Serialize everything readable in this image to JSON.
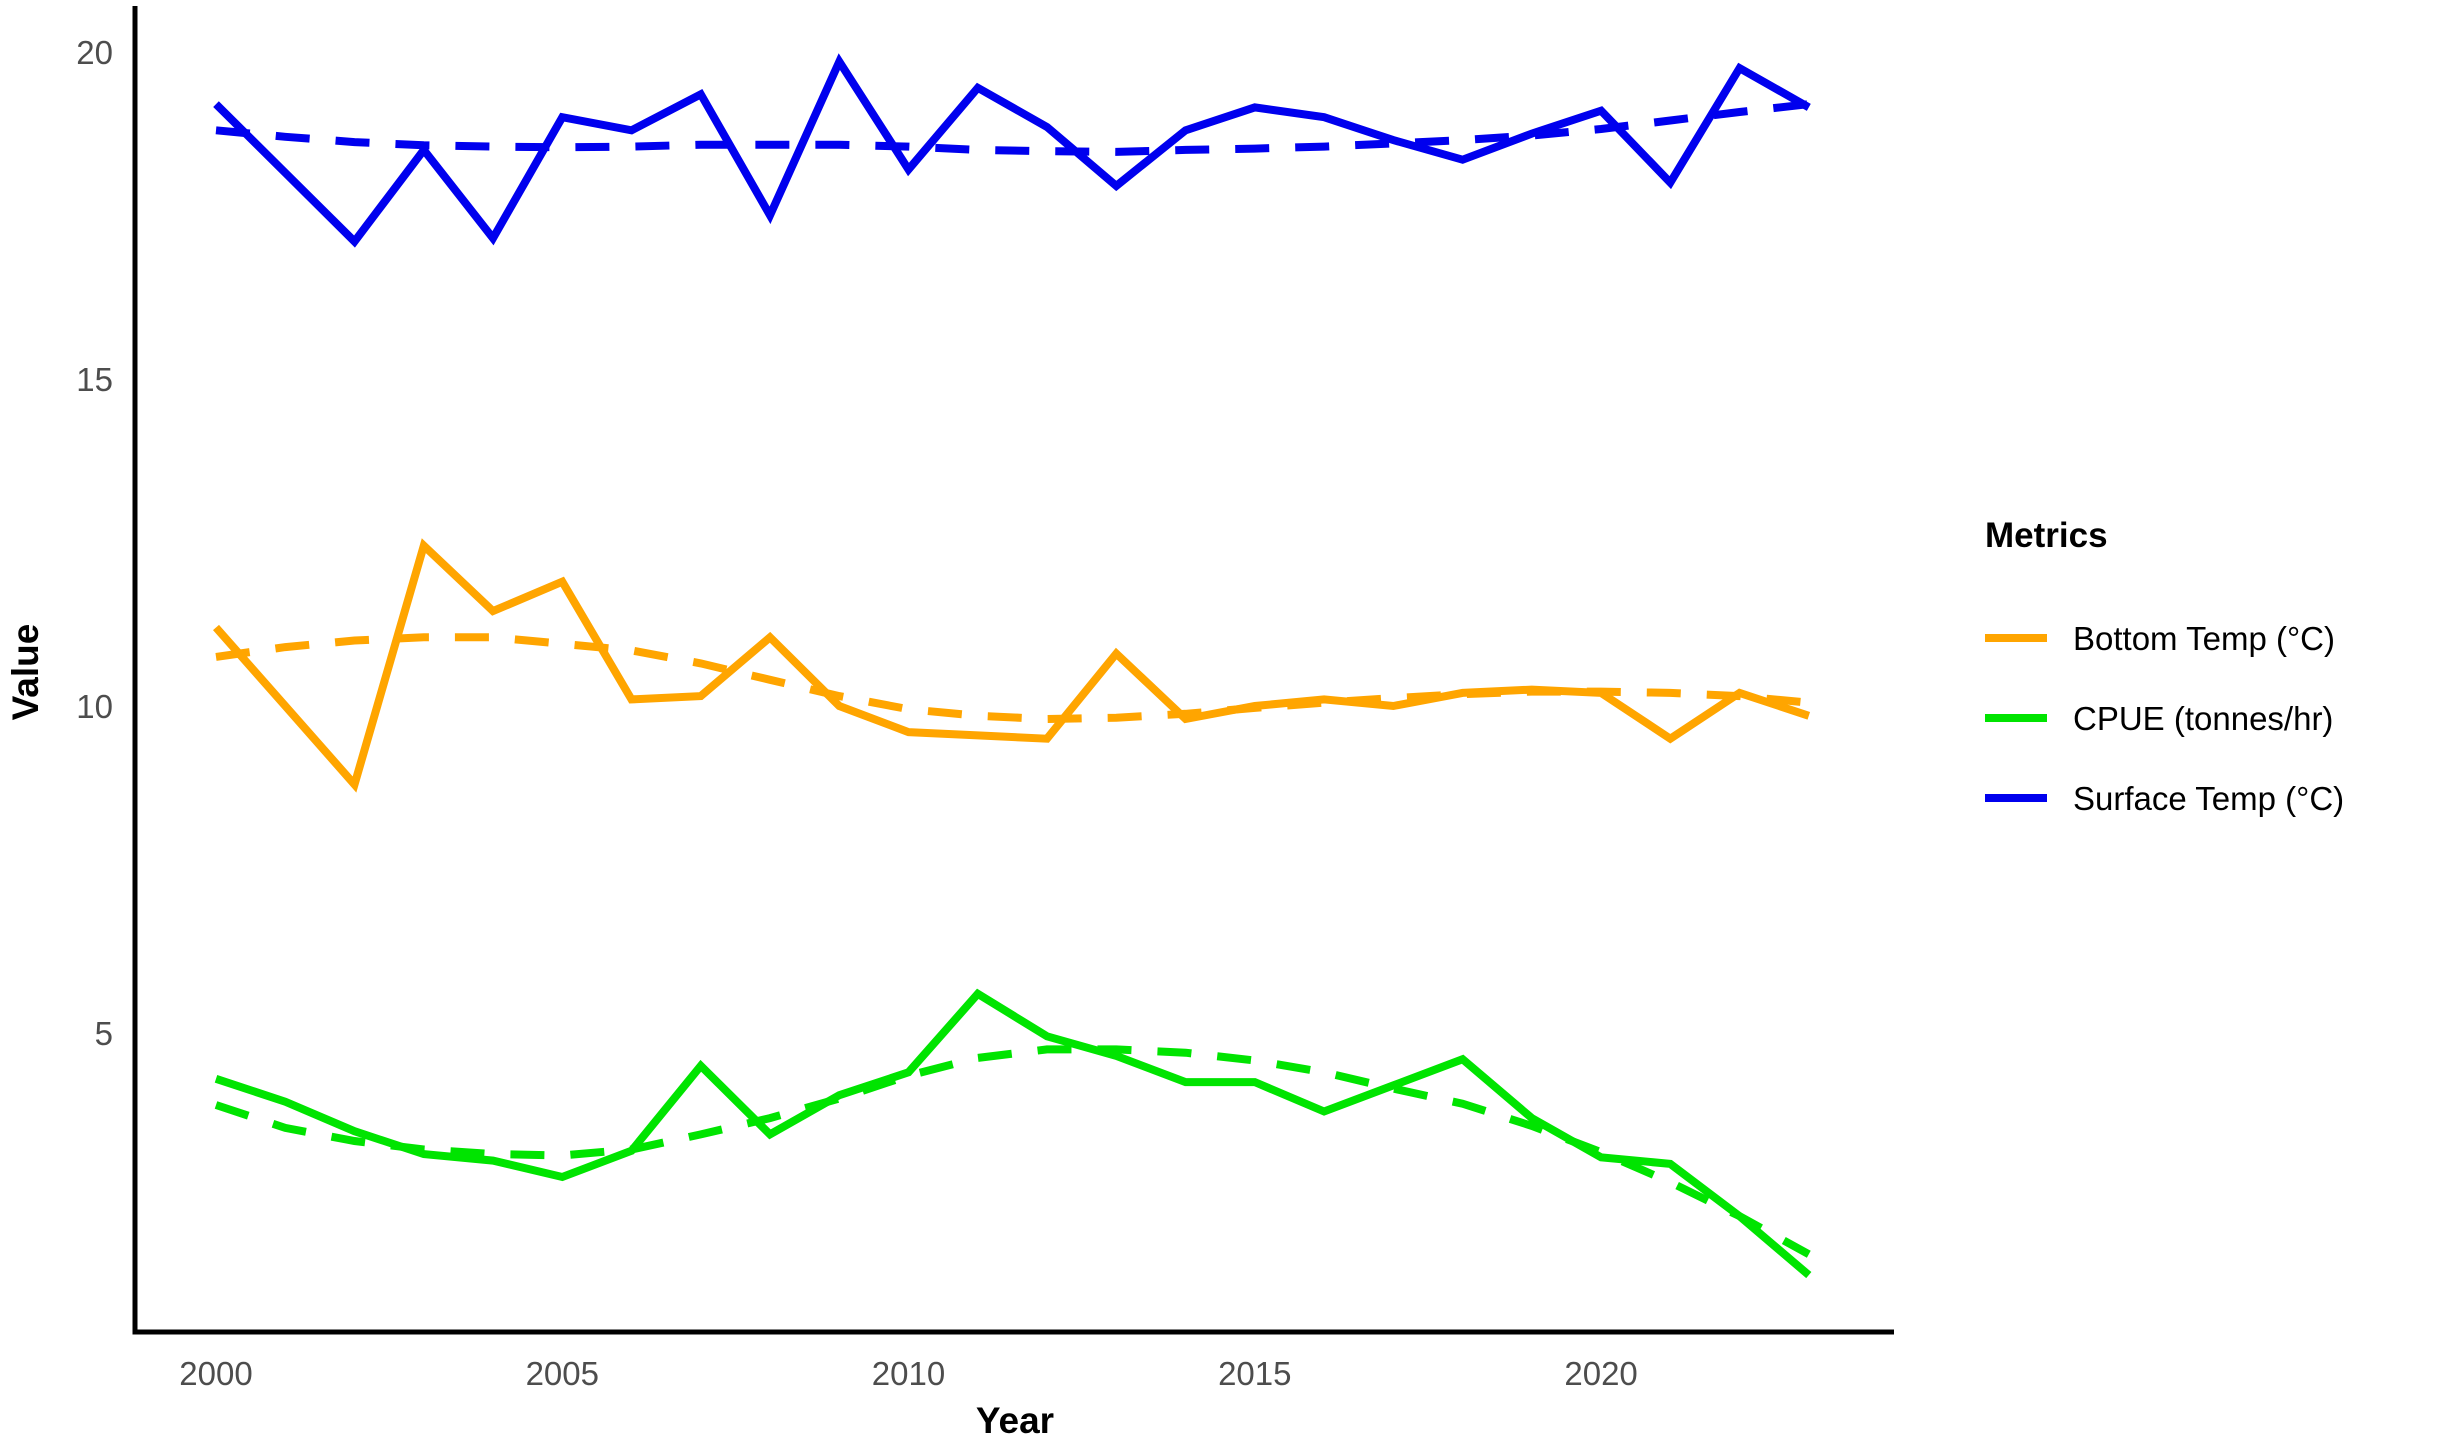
{
  "chart_data": {
    "type": "line",
    "title": "",
    "xlabel": "Year",
    "ylabel": "Value",
    "legend_title": "Metrics",
    "legend_position": "right",
    "grid": false,
    "x_ticks": [
      2000,
      2005,
      2010,
      2015,
      2020
    ],
    "y_ticks": [
      5,
      10,
      15,
      20
    ],
    "xlim": [
      1998.83,
      2024.23
    ],
    "ylim": [
      0.43,
      20.7
    ],
    "x": [
      2000,
      2001,
      2002,
      2003,
      2004,
      2005,
      2006,
      2007,
      2008,
      2009,
      2010,
      2011,
      2012,
      2013,
      2014,
      2015,
      2016,
      2017,
      2018,
      2019,
      2020,
      2021,
      2022,
      2023
    ],
    "series": [
      {
        "name": "Bottom Temp (°C)",
        "style": "solid",
        "color": "#FFA500",
        "values": [
          11.2,
          10.0,
          8.8,
          12.45,
          11.45,
          11.9,
          10.1,
          10.15,
          11.05,
          10.0,
          9.6,
          9.55,
          9.5,
          10.8,
          9.8,
          10.0,
          10.1,
          10.0,
          10.2,
          10.25,
          10.2,
          9.5,
          10.2,
          9.85
        ]
      },
      {
        "name": "Bottom Temp (°C) trend",
        "style": "dashed",
        "color": "#FFA500",
        "values": [
          10.75,
          10.9,
          11.0,
          11.05,
          11.05,
          10.95,
          10.85,
          10.65,
          10.4,
          10.15,
          9.95,
          9.85,
          9.8,
          9.82,
          9.88,
          9.97,
          10.05,
          10.12,
          10.18,
          10.22,
          10.22,
          10.2,
          10.15,
          10.05
        ]
      },
      {
        "name": "CPUE (tonnes/hr)",
        "style": "solid",
        "color": "#00E400",
        "values": [
          4.3,
          3.95,
          3.5,
          3.15,
          3.05,
          2.8,
          3.2,
          4.5,
          3.45,
          4.05,
          4.4,
          5.6,
          4.95,
          4.65,
          4.25,
          4.25,
          3.8,
          4.2,
          4.6,
          3.7,
          3.1,
          3.0,
          2.2,
          1.3
        ]
      },
      {
        "name": "CPUE (tonnes/hr) trend",
        "style": "dashed",
        "color": "#00E400",
        "values": [
          3.9,
          3.55,
          3.35,
          3.22,
          3.15,
          3.13,
          3.22,
          3.45,
          3.7,
          4.0,
          4.35,
          4.62,
          4.75,
          4.75,
          4.7,
          4.58,
          4.4,
          4.15,
          3.92,
          3.58,
          3.18,
          2.72,
          2.2,
          1.62
        ]
      },
      {
        "name": "Surface Temp (°C)",
        "style": "solid",
        "color": "#0000EE",
        "values": [
          19.2,
          18.15,
          17.1,
          18.5,
          17.15,
          19.0,
          18.8,
          19.35,
          17.5,
          19.85,
          18.2,
          19.45,
          18.85,
          17.95,
          18.8,
          19.15,
          19.0,
          18.65,
          18.35,
          18.75,
          19.1,
          18.0,
          19.75,
          19.15
        ]
      },
      {
        "name": "Surface Temp (°C) trend",
        "style": "dashed",
        "color": "#0000EE",
        "values": [
          18.8,
          18.7,
          18.62,
          18.57,
          18.55,
          18.54,
          18.55,
          18.58,
          18.58,
          18.58,
          18.55,
          18.5,
          18.48,
          18.47,
          18.5,
          18.52,
          18.55,
          18.6,
          18.65,
          18.72,
          18.82,
          18.95,
          19.08,
          19.2
        ]
      }
    ],
    "legend": [
      {
        "label": "Bottom Temp (°C)",
        "color": "#FFA500"
      },
      {
        "label": "CPUE (tonnes/hr)",
        "color": "#00E400"
      },
      {
        "label": "Surface Temp (°C)",
        "color": "#0000EE"
      }
    ]
  }
}
